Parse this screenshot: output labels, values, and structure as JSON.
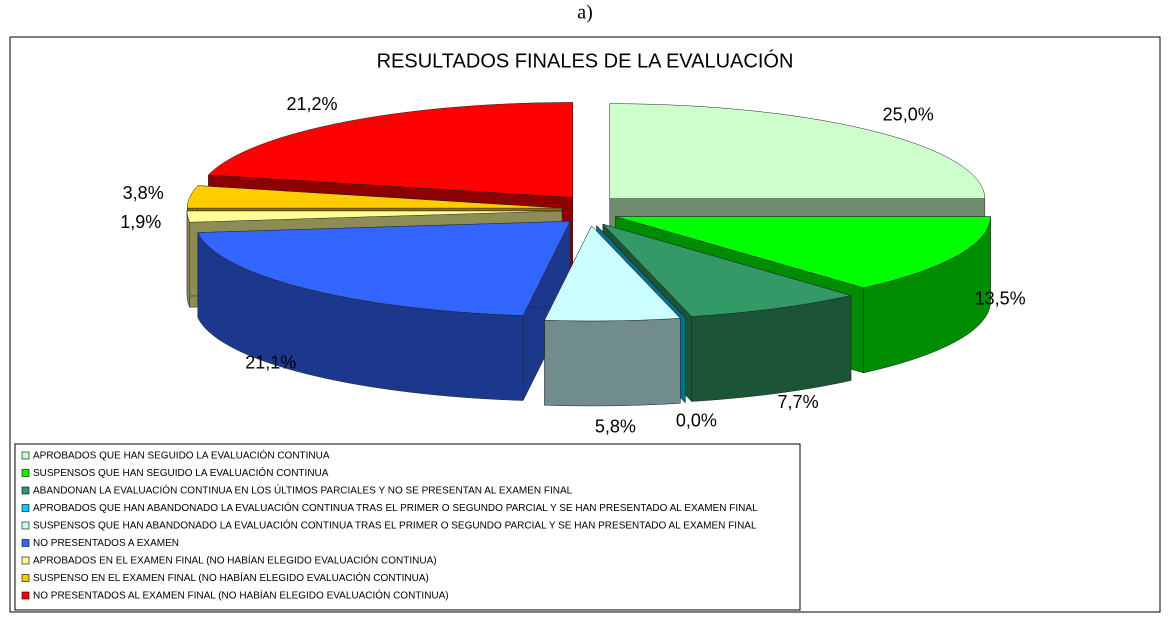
{
  "chart_data": {
    "type": "pie",
    "caption": "a)",
    "title": "RESULTADOS FINALES DE LA EVALUACIÓN",
    "categories": [
      "APROBADOS QUE HAN SEGUIDO LA EVALUACIÓN CONTINUA",
      "SUSPENSOS QUE HAN SEGUIDO LA EVALUACIÓN CONTINUA",
      "ABANDONAN LA EVALUACIÓN CONTINUA EN LOS ÚLTIMOS PARCIALES Y NO SE PRESENTAN AL EXAMEN FINAL",
      "APROBADOS QUE HAN ABANDONADO LA EVALUACIÓN CONTINUA TRAS EL PRIMER O SEGUNDO PARCIAL Y SE HAN PRESENTADO AL EXAMEN FINAL",
      "SUSPENSOS QUE HAN ABANDONADO LA EVALUACIÓN CONTINUA TRAS EL PRIMER O SEGUNDO PARCIAL Y SE HAN PRESENTADO AL EXAMEN FINAL",
      "NO PRESENTADOS A EXAMEN",
      "APROBADOS EN EL EXAMEN FINAL (NO HABÍAN ELEGIDO EVALUACIÓN CONTINUA)",
      "SUSPENSO EN EL EXAMEN FINAL (NO HABÍAN ELEGIDO EVALUACIÓN CONTINUA)",
      "NO PRESENTADOS AL EXAMEN FINAL (NO HABÍAN ELEGIDO EVALUACIÓN CONTINUA)"
    ],
    "values": [
      25.0,
      13.5,
      7.7,
      0.0,
      5.8,
      21.1,
      1.9,
      3.8,
      21.2
    ],
    "value_labels": [
      "25,0%",
      "13,5%",
      "7,7%",
      "0,0%",
      "5,8%",
      "21,1%",
      "1,9%",
      "3,8%",
      "21,2%"
    ],
    "colors": [
      "#ccffcc",
      "#00ff00",
      "#339966",
      "#00ccff",
      "#ccffff",
      "#3366ff",
      "#ffff99",
      "#ffcc00",
      "#ff0000"
    ],
    "legend": "bottom"
  }
}
